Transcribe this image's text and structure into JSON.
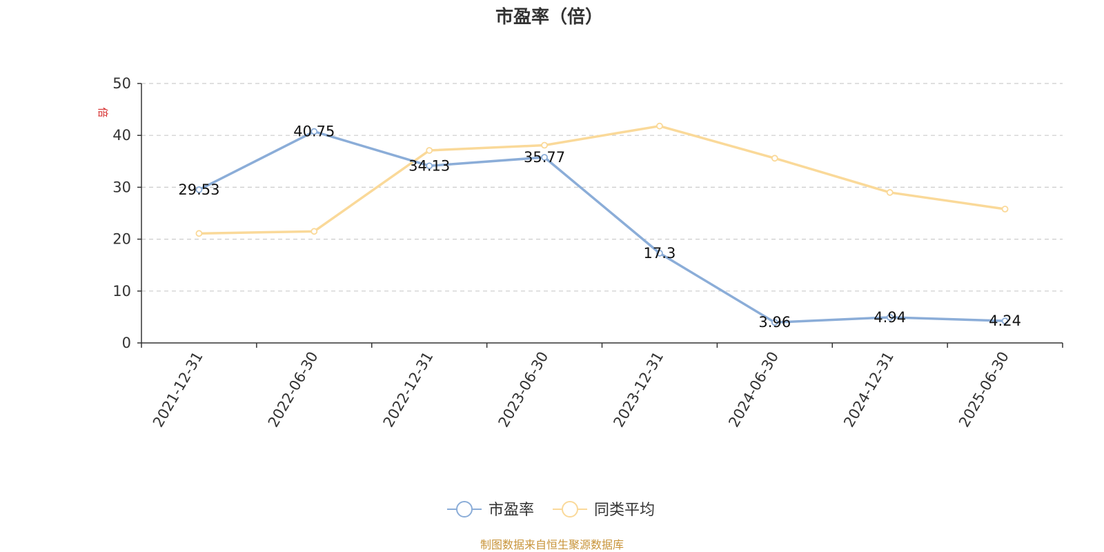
{
  "chart_data": {
    "type": "line",
    "title": "市盈率（倍）",
    "ylabel": "倍",
    "xlabel": "",
    "categories": [
      "2021-12-31",
      "2022-06-30",
      "2022-12-31",
      "2023-06-30",
      "2023-12-31",
      "2024-06-30",
      "2024-12-31",
      "2025-06-30"
    ],
    "ylim": [
      0,
      50
    ],
    "yticks": [
      0,
      10,
      20,
      30,
      40,
      50
    ],
    "grid": true,
    "legend_position": "bottom-center",
    "series": [
      {
        "name": "市盈率",
        "color": "#8badd8",
        "values": [
          29.53,
          40.75,
          34.13,
          35.77,
          17.3,
          3.96,
          4.94,
          4.24
        ],
        "labels": [
          "29.53",
          "40.75",
          "34.13",
          "35.77",
          "17.3",
          "3.96",
          "4.94",
          "4.24"
        ]
      },
      {
        "name": "同类平均",
        "color": "#fad999",
        "values": [
          21.1,
          21.5,
          37.1,
          38.1,
          41.8,
          35.6,
          29.0,
          25.8
        ]
      }
    ]
  },
  "source": "制图数据来自恒生聚源数据库"
}
